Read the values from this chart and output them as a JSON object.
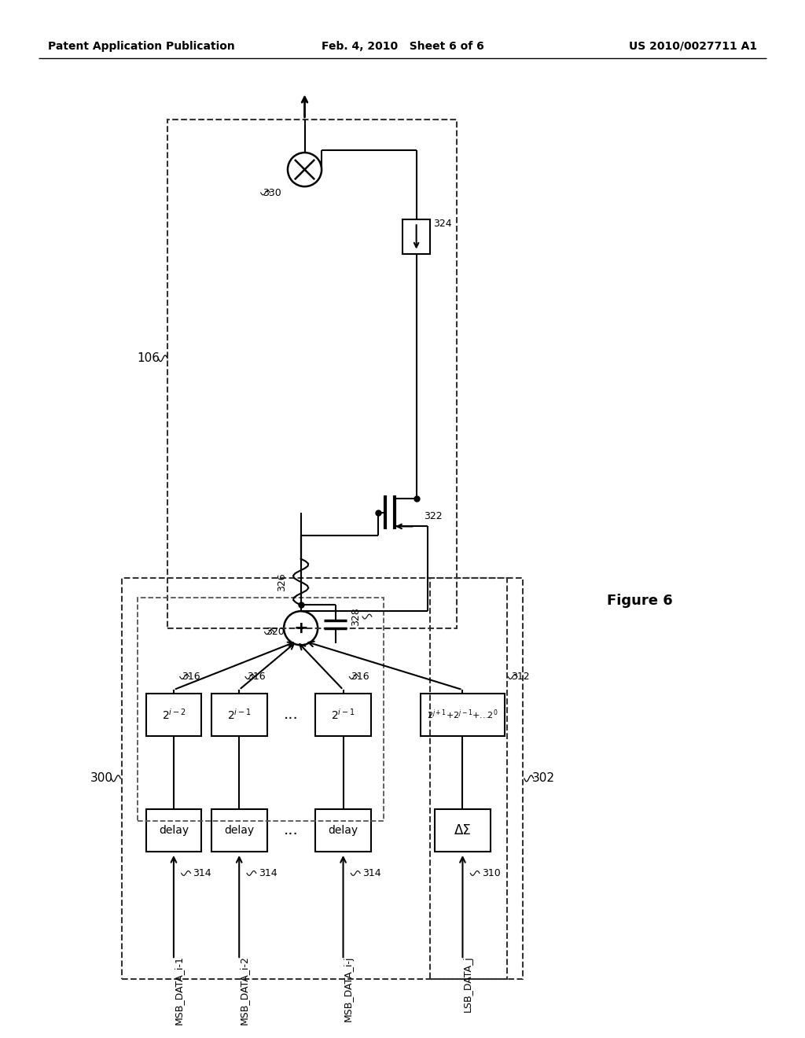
{
  "header_left": "Patent Application Publication",
  "header_center": "Feb. 4, 2010   Sheet 6 of 6",
  "header_right": "US 2010/0027711 A1",
  "figure_label": "Figure 6",
  "bg_color": "#ffffff",
  "line_color": "#000000",
  "dashed_color": "#444444",
  "msb_labels": [
    "2^{i-2}",
    "2^{i-1}",
    "2^{i-1}"
  ],
  "lsb_weight_label": "2^{j+1}+2^{j-1}+...2^0",
  "delay_label": "delay",
  "delta_sigma_label": "ΔΣ",
  "sum_label": "+",
  "ref_106": "106",
  "ref_300": "300",
  "ref_302": "302",
  "ref_310": "310",
  "ref_312": "312",
  "ref_314": "314",
  "ref_316": "316",
  "ref_320": "320",
  "ref_322": "322",
  "ref_324": "324",
  "ref_326": "326",
  "ref_328": "328",
  "ref_330": "330",
  "input_labels": [
    "MSB_DATA_i-1",
    "MSB_DATA_i-2",
    "MSB_DATA_i-j",
    "LSB_DATA_j"
  ]
}
